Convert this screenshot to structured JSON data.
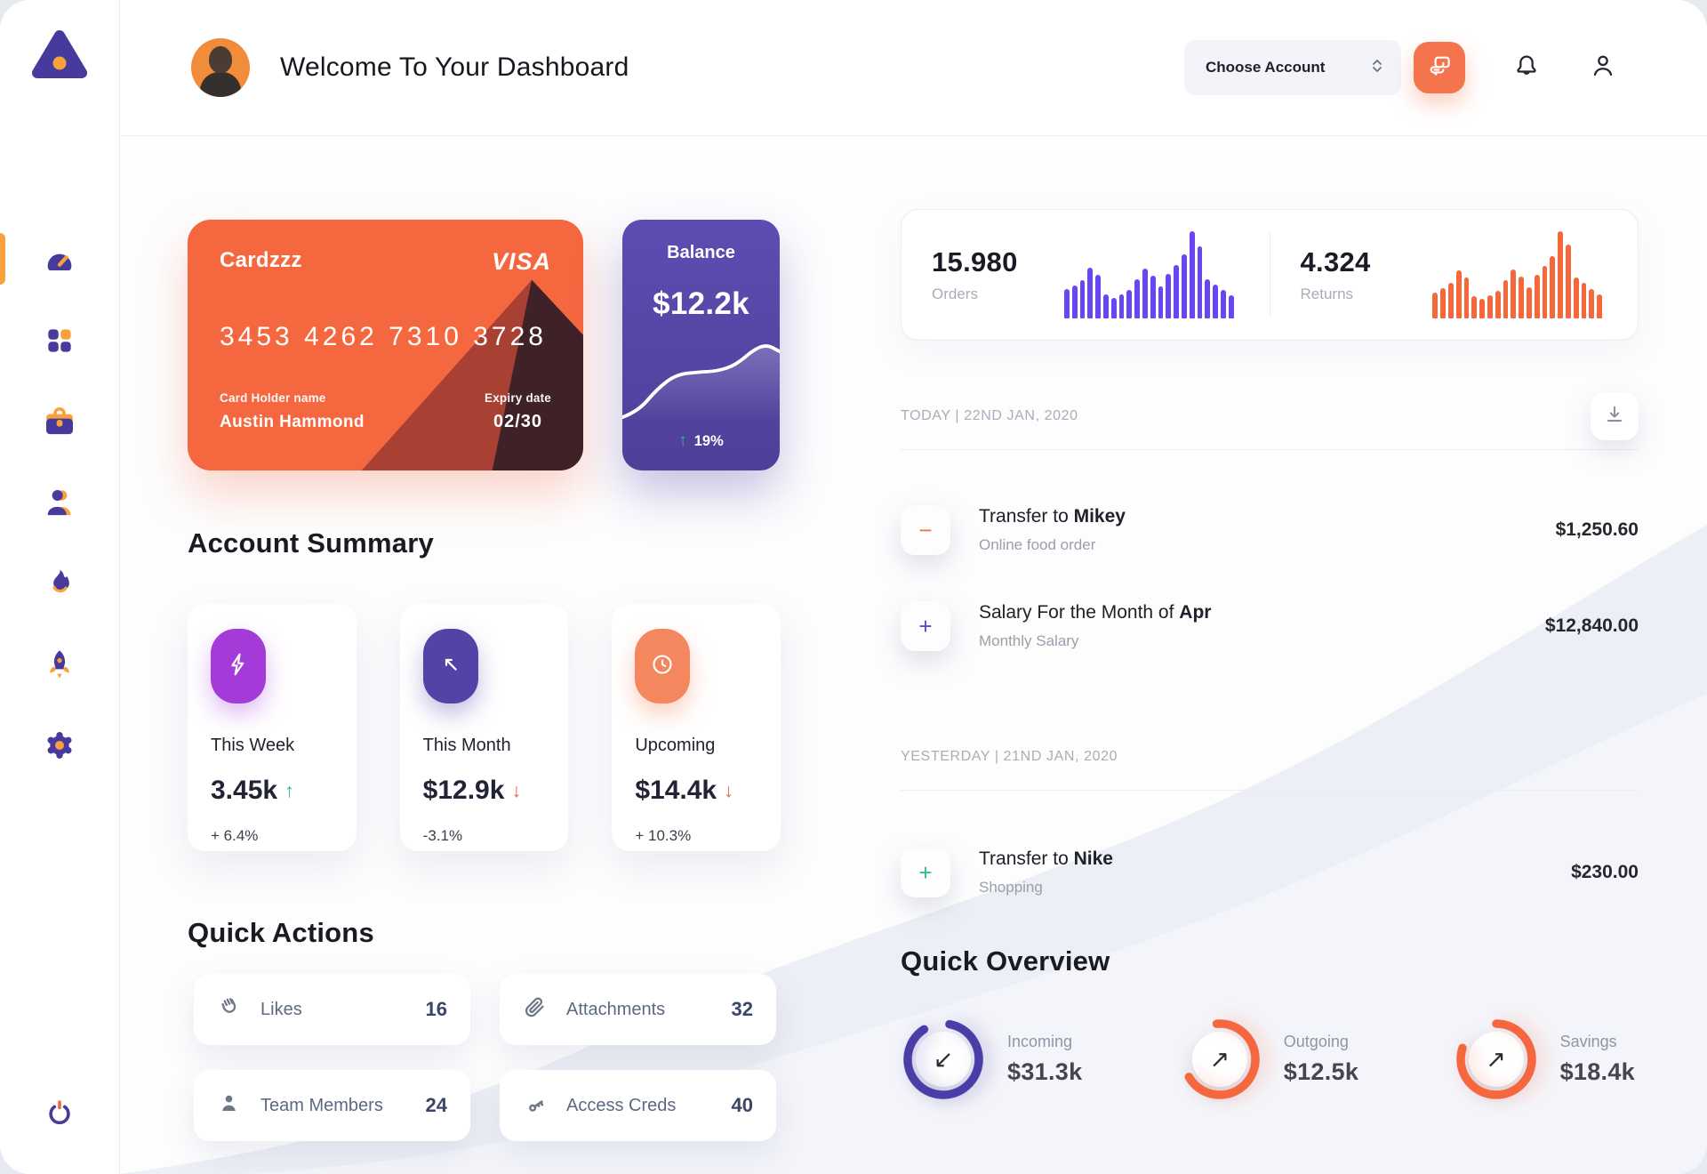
{
  "sidebar": {
    "logo_icon": "triangle-logo",
    "items": [
      {
        "name": "dashboard",
        "icon": "gauge-icon",
        "active": true
      },
      {
        "name": "apps",
        "icon": "grid-icon",
        "active": false
      },
      {
        "name": "portfolio",
        "icon": "briefcase-icon",
        "active": false
      },
      {
        "name": "contacts",
        "icon": "user-icon",
        "active": false
      },
      {
        "name": "trending",
        "icon": "flame-icon",
        "active": false
      },
      {
        "name": "launch",
        "icon": "rocket-icon",
        "active": false
      },
      {
        "name": "settings",
        "icon": "gear-icon",
        "active": false
      }
    ],
    "logout_icon": "power-icon",
    "accent_purple": "#473A9D",
    "accent_orange": "#F9A13C"
  },
  "header": {
    "title": "Welcome To Your Dashboard",
    "account_selector": "Choose Account",
    "chat_icon": "chat-bubbles-icon",
    "notification_icon": "bell-icon",
    "profile_icon": "user-outline-icon"
  },
  "credit_card": {
    "name": "Cardzzz",
    "brand": "VISA",
    "number": "3453 4262 7310 3728",
    "holder_label": "Card Holder name",
    "holder": "Austin Hammond",
    "expiry_label": "Expiry date",
    "expiry": "02/30",
    "color": "#F4673F"
  },
  "balance_card": {
    "label": "Balance",
    "value": "$12.2k",
    "change": "19%",
    "trend": "up",
    "color": "#554AA8"
  },
  "stats": {
    "orders": {
      "value": "15.980",
      "label": "Orders"
    },
    "returns": {
      "value": "4.324",
      "label": "Returns"
    }
  },
  "chart_data": [
    {
      "id": "orders-sparkline",
      "type": "bar",
      "label": "Orders activity",
      "color": "#6A46F2",
      "values": [
        34,
        38,
        44,
        58,
        50,
        28,
        23,
        28,
        33,
        45,
        57,
        49,
        37,
        51,
        61,
        73,
        100,
        83,
        45,
        39,
        33,
        27
      ]
    },
    {
      "id": "returns-sparkline",
      "type": "bar",
      "label": "Returns activity",
      "color": "#F4683C",
      "values": [
        30,
        35,
        41,
        55,
        47,
        26,
        22,
        27,
        32,
        44,
        56,
        48,
        36,
        50,
        60,
        71,
        100,
        85,
        47,
        41,
        34,
        28
      ]
    },
    {
      "id": "balance-trend",
      "type": "area",
      "label": "Balance trend",
      "color": "#FFFFFF",
      "points": [
        [
          0,
          0.95
        ],
        [
          0.1,
          0.88
        ],
        [
          0.22,
          0.62
        ],
        [
          0.34,
          0.45
        ],
        [
          0.48,
          0.42
        ],
        [
          0.6,
          0.41
        ],
        [
          0.72,
          0.34
        ],
        [
          0.84,
          0.15
        ],
        [
          0.92,
          0.1
        ],
        [
          1,
          0.18
        ]
      ]
    },
    {
      "id": "quick-overview-rings",
      "type": "donut",
      "items": [
        {
          "label": "Incoming",
          "value": "$31.3k",
          "percent": 88,
          "color": "#4B3DA8",
          "direction": "down-left"
        },
        {
          "label": "Outgoing",
          "value": "$12.5k",
          "percent": 68,
          "color": "#F5673F",
          "direction": "up-right"
        },
        {
          "label": "Savings",
          "value": "$18.4k",
          "percent": 80,
          "color": "#F5673F",
          "direction": "up-right"
        }
      ]
    }
  ],
  "account_summary": {
    "heading": "Account Summary",
    "cards": [
      {
        "label": "This Week",
        "value": "3.45k",
        "change": "+ 6.4%",
        "trend": "up",
        "icon": "lightning-icon",
        "icon_color": "#A43BD9"
      },
      {
        "label": "This Month",
        "value": "$12.9k",
        "change": "-3.1%",
        "trend": "down",
        "icon": "trend-arrow-icon",
        "icon_color": "#5343A6"
      },
      {
        "label": "Upcoming",
        "value": "$14.4k",
        "change": "+ 10.3%",
        "trend": "down",
        "icon": "clock-icon",
        "icon_color": "#F5875F"
      }
    ]
  },
  "quick_actions": {
    "heading": "Quick Actions",
    "items": [
      {
        "label": "Likes",
        "count": "16",
        "icon": "clap-icon"
      },
      {
        "label": "Attachments",
        "count": "32",
        "icon": "paperclip-icon"
      },
      {
        "label": "Team Members",
        "count": "24",
        "icon": "member-icon"
      },
      {
        "label": "Access Creds",
        "count": "40",
        "icon": "key-icon"
      }
    ]
  },
  "transactions": {
    "download_icon": "download-icon",
    "groups": [
      {
        "date_label": "TODAY | 22ND JAN, 2020",
        "items": [
          {
            "title_prefix": "Transfer to ",
            "title_bold": "Mikey",
            "subtitle": "Online food order",
            "amount": "$1,250.60",
            "sign": "minus",
            "sign_color": "#F4744E"
          },
          {
            "title_prefix": "Salary For the Month of ",
            "title_bold": "Apr",
            "subtitle": "Monthly Salary",
            "amount": "$12,840.00",
            "sign": "plus",
            "sign_color": "#5A49C8"
          }
        ]
      },
      {
        "date_label": "YESTERDAY | 21ND JAN, 2020",
        "items": [
          {
            "title_prefix": "Transfer to ",
            "title_bold": "Nike",
            "subtitle": "Shopping",
            "amount": "$230.00",
            "sign": "plus",
            "sign_color": "#2EBD93"
          }
        ]
      }
    ]
  },
  "quick_overview": {
    "heading": "Quick Overview"
  }
}
